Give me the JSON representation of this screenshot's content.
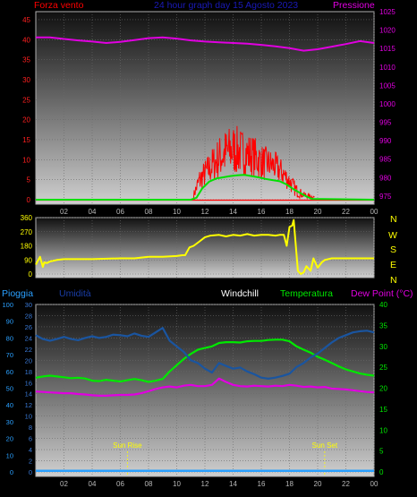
{
  "chart_data": [
    {
      "type": "line",
      "title": "24 hour graph day  15 Agosto 2023",
      "left_axis_label": "Forza vento",
      "right_axis_label": "Pressione",
      "left_ticks": [
        "0",
        "5",
        "10",
        "15",
        "20",
        "25",
        "30",
        "35",
        "40",
        "45"
      ],
      "right_ticks": [
        "975",
        "980",
        "985",
        "990",
        "995",
        "1000",
        "1005",
        "1010",
        "1015",
        "1020",
        "1025"
      ],
      "x_ticks": [
        "02",
        "04",
        "06",
        "08",
        "10",
        "12",
        "14",
        "16",
        "18",
        "20",
        "22",
        "00"
      ],
      "ylim_left": [
        0,
        47
      ],
      "ylim_right": [
        974,
        1025
      ],
      "xlim": [
        0,
        24
      ],
      "grid": true,
      "series": [
        {
          "key": "pressure",
          "axis": "right",
          "color": "#e000e0",
          "x": [
            0,
            1,
            2,
            3,
            4,
            5,
            6,
            7,
            8,
            9,
            10,
            11,
            12,
            13,
            14,
            15,
            16,
            17,
            18,
            19,
            20,
            21,
            22,
            23,
            24
          ],
          "values": [
            1018,
            1018,
            1017.6,
            1017.2,
            1016.9,
            1016.5,
            1016.8,
            1017.3,
            1017.8,
            1018,
            1017.7,
            1017.2,
            1016.9,
            1016.7,
            1016.5,
            1016.3,
            1016,
            1015.6,
            1015.1,
            1014.4,
            1014.8,
            1015.5,
            1016.2,
            1017,
            1016.5
          ]
        },
        {
          "key": "wind_average",
          "axis": "left",
          "color": "#00e000",
          "x": [
            0,
            11,
            11.4,
            11.8,
            12.3,
            12.8,
            13.3,
            13.8,
            14.3,
            14.8,
            15.3,
            15.8,
            16.3,
            16.8,
            17.3,
            17.8,
            18.3,
            18.8,
            19.2,
            19.6,
            24
          ],
          "values": [
            0,
            0,
            0.5,
            2.8,
            4.5,
            5.3,
            5.6,
            5.9,
            6.1,
            6.2,
            5.9,
            5.6,
            5.2,
            4.9,
            4.6,
            3.8,
            2.6,
            1.6,
            0.8,
            0.2,
            0
          ]
        }
      ],
      "gust_band": {
        "key": "wind_gust",
        "axis": "left",
        "color": "#ff0000",
        "x_from": 11.2,
        "x_to": 19.8,
        "baseline": 0.6,
        "envelope_x": [
          11.2,
          11.6,
          12,
          12.5,
          13,
          13.5,
          14,
          14.5,
          15,
          15.5,
          16,
          16.5,
          17,
          17.5,
          18,
          18.5,
          19,
          19.8
        ],
        "envelope_max": [
          2,
          8,
          10,
          13,
          16,
          18,
          19,
          18,
          17,
          16,
          14,
          13,
          12,
          10,
          7,
          4,
          2,
          1
        ],
        "envelope_min": [
          0.4,
          1.5,
          3,
          4,
          5,
          5.5,
          6,
          6,
          6,
          5.5,
          5,
          5,
          4.5,
          3.5,
          2,
          0.5,
          0.3,
          0.3
        ]
      }
    },
    {
      "type": "line",
      "right_axis_label": "N W S E N",
      "left_ticks": [
        "0",
        "90",
        "180",
        "270",
        "360"
      ],
      "ylim": [
        0,
        360
      ],
      "xlim": [
        0,
        24
      ],
      "grid": true,
      "series": [
        {
          "key": "wind_direction",
          "color": "#ffff00",
          "x": [
            0,
            0.3,
            0.5,
            0.6,
            0.8,
            1,
            1.5,
            2,
            4,
            6,
            7,
            7.5,
            8,
            9,
            10,
            10.4,
            10.6,
            10.9,
            11.2,
            11.5,
            12,
            12.4,
            13,
            13.5,
            14,
            14.5,
            15,
            15.5,
            16,
            16.5,
            17,
            17.3,
            17.6,
            17.8,
            18,
            18.2,
            18.3,
            18.6,
            18.8,
            19,
            19.2,
            19.5,
            19.7,
            20,
            20.3,
            20.5,
            21,
            22,
            24
          ],
          "values": [
            60,
            110,
            45,
            75,
            70,
            80,
            90,
            95,
            95,
            100,
            100,
            105,
            110,
            110,
            115,
            120,
            120,
            170,
            180,
            200,
            235,
            245,
            250,
            240,
            250,
            245,
            255,
            245,
            250,
            250,
            245,
            250,
            250,
            180,
            300,
            310,
            345,
            20,
            0,
            10,
            50,
            20,
            100,
            40,
            75,
            90,
            100,
            100,
            100
          ]
        }
      ]
    },
    {
      "type": "line",
      "labels": {
        "pioggia": "Pioggia",
        "umidita": "Umidità",
        "windchill": "Windchill",
        "temperatura": "Temperatura",
        "dewpoint": "Dew Point (°C)"
      },
      "left_outer_ticks": [
        "0",
        "10",
        "20",
        "30",
        "40",
        "50",
        "60",
        "70",
        "80",
        "90",
        "100"
      ],
      "left_inner_ticks": [
        "0",
        "2",
        "4",
        "6",
        "8",
        "10",
        "12",
        "14",
        "16",
        "18",
        "20",
        "22",
        "24",
        "26",
        "28",
        "30"
      ],
      "right_ticks": [
        "0",
        "5",
        "10",
        "15",
        "20",
        "25",
        "30",
        "35",
        "40"
      ],
      "x_ticks": [
        "02",
        "04",
        "06",
        "08",
        "10",
        "12",
        "14",
        "16",
        "18",
        "20",
        "22",
        "00"
      ],
      "ylim_left": [
        0,
        30
      ],
      "ylim_right": [
        0,
        40
      ],
      "xlim": [
        0,
        24
      ],
      "grid": true,
      "annotations": [
        {
          "label": "Sun Rise",
          "x": 6.5
        },
        {
          "label": "Sun Set",
          "x": 20.5
        }
      ],
      "series": [
        {
          "key": "humidity",
          "axis": "left",
          "color": "#1a55a0",
          "x": [
            0,
            0.5,
            1,
            1.5,
            2,
            2.5,
            3,
            3.5,
            4,
            4.5,
            5,
            5.5,
            6,
            6.5,
            7,
            7.5,
            8,
            8.5,
            9,
            9.5,
            10,
            10.5,
            11,
            11.5,
            12,
            12.5,
            13,
            13.5,
            14,
            14.5,
            15,
            15.5,
            16,
            16.5,
            17,
            17.5,
            18,
            18.5,
            19,
            19.5,
            20,
            20.5,
            21,
            21.5,
            22,
            22.5,
            23,
            23.5,
            24
          ],
          "values": [
            24.5,
            23.8,
            23.5,
            23.8,
            24.2,
            23.8,
            23.6,
            24,
            24.3,
            24,
            24.2,
            24.6,
            24.5,
            24.3,
            24.8,
            24.4,
            24.2,
            25,
            25.8,
            23.5,
            22.5,
            21.5,
            20,
            19.5,
            18.5,
            17.8,
            19.5,
            19,
            18.5,
            18.7,
            18,
            17.5,
            16.9,
            16.7,
            16.9,
            17.2,
            17.6,
            18.8,
            19.5,
            20.5,
            21.2,
            22.2,
            23.2,
            24,
            24.5,
            25,
            25.2,
            25.3,
            25
          ]
        },
        {
          "key": "temperature",
          "axis": "right",
          "color": "#00e800",
          "x": [
            0,
            0.5,
            1,
            1.5,
            2,
            2.5,
            3,
            3.5,
            4,
            4.5,
            5,
            5.5,
            6,
            6.5,
            7,
            7.5,
            8,
            8.5,
            9,
            9.5,
            10,
            10.5,
            11,
            11.5,
            12,
            12.5,
            13,
            13.5,
            14,
            14.5,
            15,
            15.5,
            16,
            16.5,
            17,
            17.5,
            18,
            18.5,
            19,
            19.5,
            20,
            20.5,
            21,
            21.5,
            22,
            22.5,
            23,
            23.5,
            24
          ],
          "values": [
            22.5,
            22.8,
            23,
            22.8,
            22.6,
            22.4,
            22.5,
            22.3,
            21.8,
            21.7,
            22,
            21.8,
            21.6,
            21.9,
            22.2,
            21.9,
            21.5,
            21.8,
            22.2,
            24,
            25.5,
            27,
            28.2,
            29.2,
            29.6,
            30,
            30.8,
            31,
            31,
            30.9,
            31.2,
            31.3,
            31.3,
            31.5,
            31.6,
            31.6,
            31.2,
            30,
            29.2,
            28.5,
            27.5,
            26.8,
            26,
            25.2,
            24.5,
            24,
            23.5,
            23.2,
            23
          ]
        },
        {
          "key": "dew_point",
          "axis": "right",
          "color": "#e000e0",
          "x": [
            0,
            0.5,
            1,
            1.5,
            2,
            2.5,
            3,
            3.5,
            4,
            4.5,
            5,
            5.5,
            6,
            6.5,
            7,
            7.5,
            8,
            8.5,
            9,
            9.5,
            10,
            10.5,
            11,
            11.5,
            12,
            12.5,
            13,
            13.5,
            14,
            14.5,
            15,
            15.5,
            16,
            16.5,
            17,
            17.5,
            18,
            18.5,
            19,
            19.5,
            20,
            20.5,
            21,
            21.5,
            22,
            22.5,
            23,
            23.5,
            24
          ],
          "values": [
            19.2,
            19.1,
            19,
            18.9,
            18.8,
            18.8,
            18.6,
            18.5,
            18.3,
            18.2,
            18.2,
            18.3,
            18.4,
            18.4,
            18.5,
            18.8,
            19.3,
            19.8,
            20.2,
            20.4,
            20.2,
            20.6,
            20.8,
            20.5,
            20.5,
            20.8,
            22.3,
            21.5,
            20.8,
            20.5,
            20.4,
            20.6,
            20.5,
            20.4,
            20.6,
            20.5,
            20.8,
            20.6,
            20.3,
            20.4,
            20.2,
            20.3,
            19.9,
            19.8,
            19.7,
            19.5,
            19.3,
            19.1,
            19
          ]
        },
        {
          "key": "rain",
          "axis": "left",
          "color": "#2aa0ff",
          "x": [
            0,
            24
          ],
          "values": [
            0.2,
            0.2
          ]
        }
      ]
    }
  ]
}
